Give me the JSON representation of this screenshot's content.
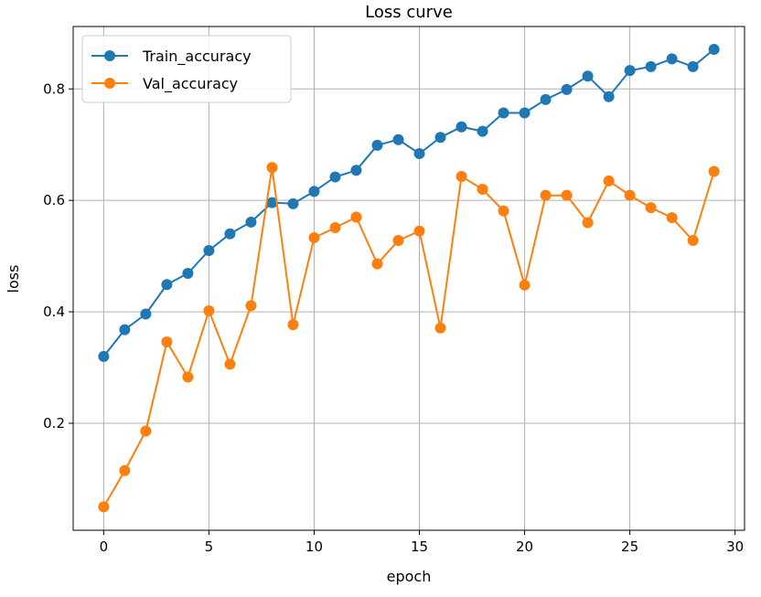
{
  "chart_data": {
    "type": "line",
    "title": "Loss curve",
    "xlabel": "epoch",
    "ylabel": "loss",
    "xlim": [
      -1.45,
      30.45
    ],
    "ylim": [
      0.008,
      0.912
    ],
    "xticks": [
      0,
      5,
      10,
      15,
      20,
      25,
      30
    ],
    "xtick_labels": [
      "0",
      "5",
      "10",
      "15",
      "20",
      "25",
      "30"
    ],
    "yticks": [
      0.2,
      0.4,
      0.6,
      0.8
    ],
    "ytick_labels": [
      "0.2",
      "0.4",
      "0.6",
      "0.8"
    ],
    "grid": true,
    "legend_position": "top-left",
    "x": [
      0,
      1,
      2,
      3,
      4,
      5,
      6,
      7,
      8,
      9,
      10,
      11,
      12,
      13,
      14,
      15,
      16,
      17,
      18,
      19,
      20,
      21,
      22,
      23,
      24,
      25,
      26,
      27,
      28,
      29
    ],
    "series": [
      {
        "name": "Train_accuracy",
        "color": "#1f77b4",
        "values": [
          0.32,
          0.368,
          0.396,
          0.449,
          0.469,
          0.51,
          0.54,
          0.561,
          0.596,
          0.594,
          0.616,
          0.642,
          0.654,
          0.699,
          0.709,
          0.684,
          0.713,
          0.732,
          0.724,
          0.757,
          0.757,
          0.781,
          0.799,
          0.823,
          0.786,
          0.833,
          0.84,
          0.854,
          0.84,
          0.871
        ]
      },
      {
        "name": "Val_accuracy",
        "color": "#ff7f0e",
        "values": [
          0.05,
          0.115,
          0.186,
          0.346,
          0.283,
          0.402,
          0.306,
          0.411,
          0.659,
          0.377,
          0.533,
          0.551,
          0.57,
          0.486,
          0.528,
          0.545,
          0.371,
          0.643,
          0.62,
          0.581,
          0.448,
          0.609,
          0.609,
          0.56,
          0.635,
          0.609,
          0.587,
          0.569,
          0.528,
          0.652
        ]
      }
    ]
  }
}
